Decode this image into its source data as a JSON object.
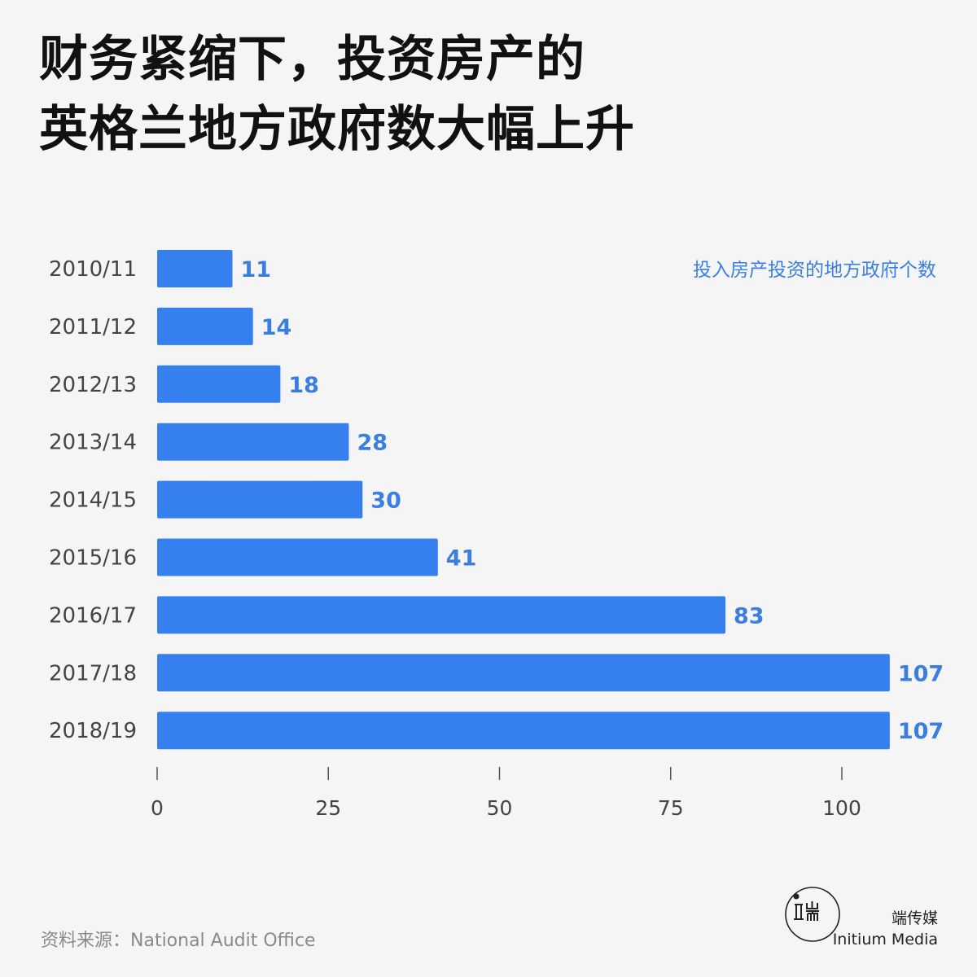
{
  "title": {
    "line1": "财务紧缩下，投资房产的",
    "line2": "英格兰地方政府数大幅上升"
  },
  "source": "资料来源：National Audit Office",
  "brand": {
    "cn": "端传媒",
    "en": "Initium Media",
    "logo_text": "端"
  },
  "colors": {
    "bar": "#3580ee",
    "label": "#3a7fe0",
    "text": "#444444",
    "background": "#f5f5f5"
  },
  "chart_data": {
    "type": "bar",
    "orientation": "horizontal",
    "categories": [
      "2010/11",
      "2011/12",
      "2012/13",
      "2013/14",
      "2014/15",
      "2015/16",
      "2016/17",
      "2017/18",
      "2018/19"
    ],
    "series": [
      {
        "name": "投入房产投资的地方政府个数",
        "values": [
          11,
          14,
          18,
          28,
          30,
          41,
          83,
          107,
          107
        ]
      }
    ],
    "xticks": [
      0,
      25,
      50,
      75,
      100
    ],
    "xlim": [
      0,
      107
    ],
    "legend": "top-right",
    "grid": false
  }
}
